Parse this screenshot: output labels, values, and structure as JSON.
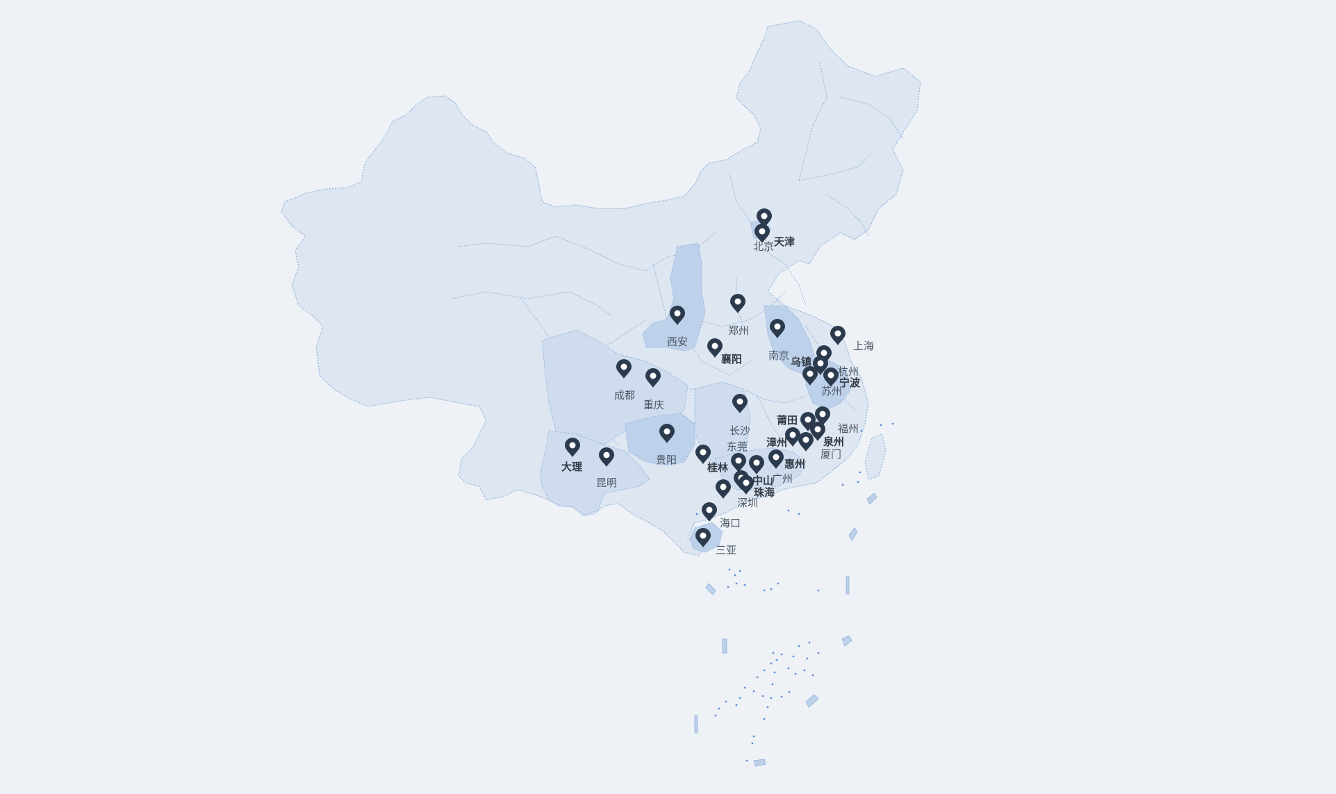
{
  "map": {
    "colors": {
      "background": "#eef2f6",
      "land": "#dde6f1",
      "land_mid": "#cfdcee",
      "land_dark": "#bed1ea",
      "border": "#8fb0da",
      "pin": "#2b3a4d",
      "pin_dot": "#ffffff",
      "label": "#4a5563"
    },
    "highlighted_regions": [
      "陕西",
      "四川",
      "贵州",
      "湖南",
      "江苏",
      "浙江",
      "广东",
      "海南",
      "云南",
      "北京"
    ],
    "cities": [
      {
        "id": "beijing",
        "name": "北京"
      },
      {
        "id": "tianjin",
        "name": "天津"
      },
      {
        "id": "zhengzhou",
        "name": "郑州"
      },
      {
        "id": "xian",
        "name": "西安"
      },
      {
        "id": "xiangyang",
        "name": "襄阳"
      },
      {
        "id": "nanjing",
        "name": "南京"
      },
      {
        "id": "shanghai",
        "name": "上海"
      },
      {
        "id": "wuzhen",
        "name": "乌镇"
      },
      {
        "id": "hangzhou",
        "name": "杭州"
      },
      {
        "id": "ningbo",
        "name": "宁波"
      },
      {
        "id": "suzhou",
        "name": "苏州"
      },
      {
        "id": "chengdu",
        "name": "成都"
      },
      {
        "id": "chongqing",
        "name": "重庆"
      },
      {
        "id": "changsha",
        "name": "长沙"
      },
      {
        "id": "putian",
        "name": "莆田"
      },
      {
        "id": "fuzhou",
        "name": "福州"
      },
      {
        "id": "quanzhou",
        "name": "泉州"
      },
      {
        "id": "zhangzhou",
        "name": "漳州"
      },
      {
        "id": "xiamen",
        "name": "厦门"
      },
      {
        "id": "guiyang",
        "name": "贵阳"
      },
      {
        "id": "dongguan",
        "name": "东莞"
      },
      {
        "id": "huizhou",
        "name": "惠州"
      },
      {
        "id": "guilin",
        "name": "桂林"
      },
      {
        "id": "guangzhou",
        "name": "广州"
      },
      {
        "id": "zhongshan",
        "name": "中山"
      },
      {
        "id": "zhuhai",
        "name": "珠海"
      },
      {
        "id": "shenzhen",
        "name": "深圳"
      },
      {
        "id": "dali",
        "name": "大理"
      },
      {
        "id": "kunming",
        "name": "昆明"
      },
      {
        "id": "haikou",
        "name": "海口"
      },
      {
        "id": "sanya",
        "name": "三亚"
      }
    ]
  }
}
